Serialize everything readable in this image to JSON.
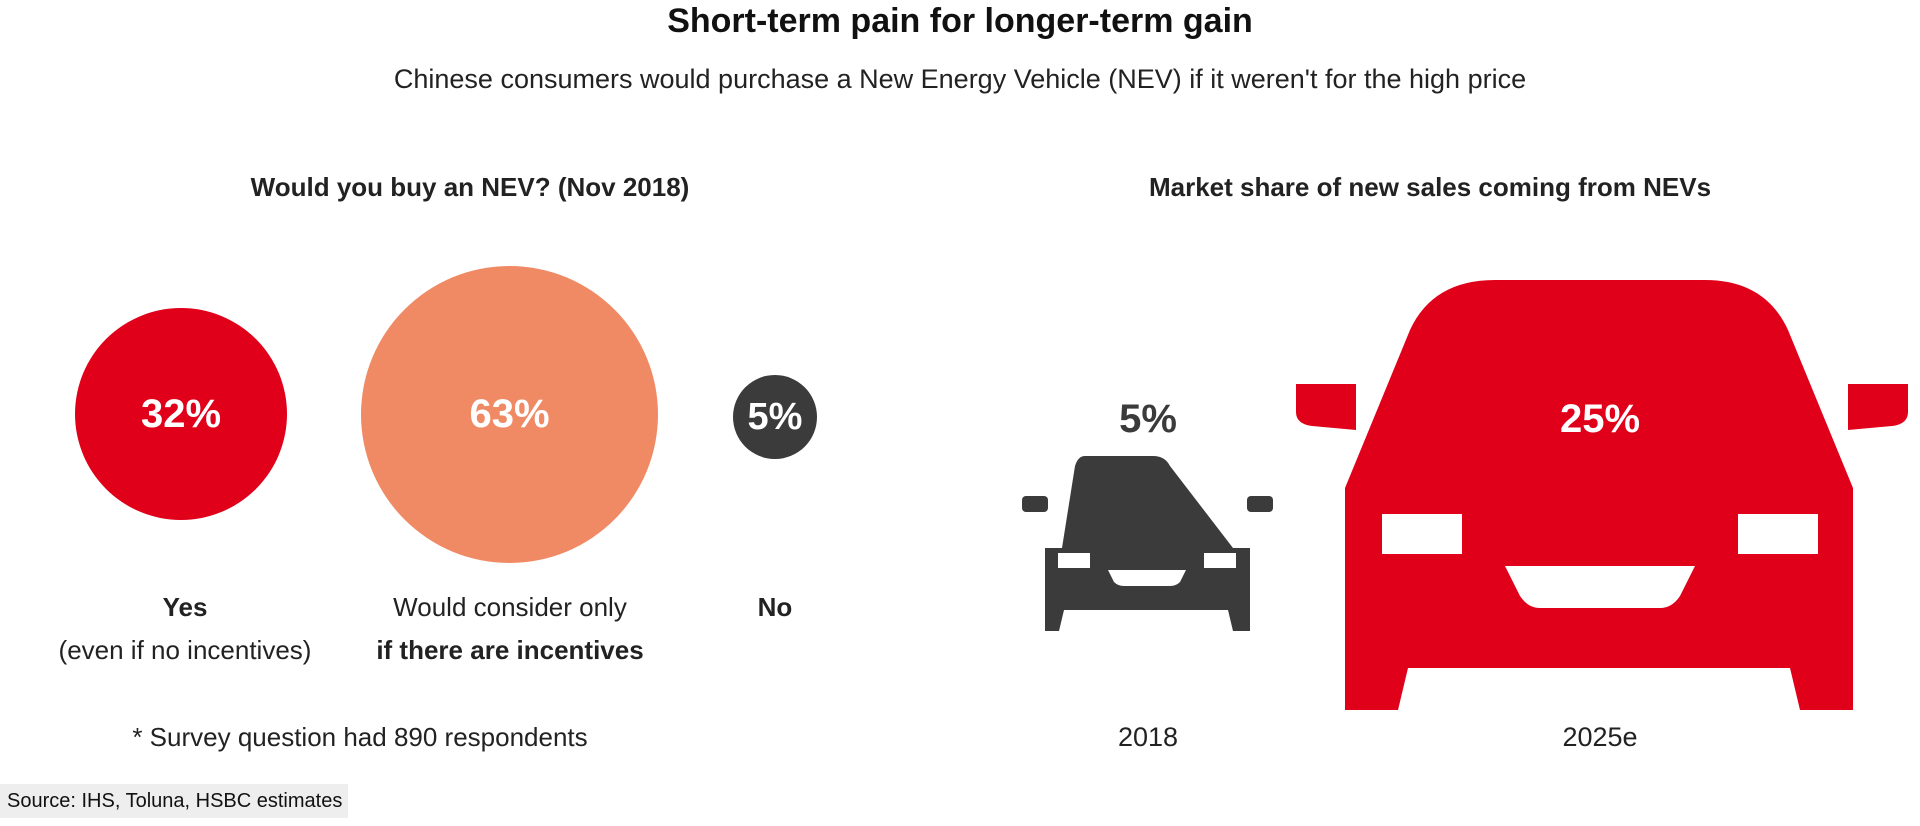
{
  "title": "Short-term pain for longer-term gain",
  "subtitle": "Chinese consumers would purchase a New Energy Vehicle (NEV) if it weren't for the high price",
  "left_panel": {
    "title": "Would you buy an NEV? (Nov 2018)",
    "note": "* Survey question had 890 respondents",
    "categories": [
      {
        "value_label": "32%",
        "line1": "Yes",
        "line2": "(even if no incentives)"
      },
      {
        "value_label": "63%",
        "line1": "Would consider only",
        "line2": "if there are incentives"
      },
      {
        "value_label": "5%",
        "line1": "No",
        "line2": ""
      }
    ]
  },
  "right_panel": {
    "title": "Market share of new sales coming from NEVs",
    "bars": [
      {
        "value_label": "5%",
        "year": "2018"
      },
      {
        "value_label": "25%",
        "year": "2025e"
      }
    ]
  },
  "source": "Source: IHS, Toluna, HSBC estimates",
  "colors": {
    "yes": "#e1001a",
    "consider": "#f08a64",
    "no": "#3b3b3b",
    "car_2018": "#3b3b3b",
    "car_2025": "#e1001a"
  },
  "chart_data": [
    {
      "type": "bubble",
      "title": "Would you buy an NEV? (Nov 2018)",
      "categories": [
        "Yes (even if no incentives)",
        "Would consider only if there are incentives",
        "No"
      ],
      "values": [
        32,
        63,
        5
      ],
      "unit": "%",
      "annotations": [
        "* Survey question had 890 respondents"
      ]
    },
    {
      "type": "bar",
      "title": "Market share of new sales coming from NEVs",
      "categories": [
        "2018",
        "2025e"
      ],
      "values": [
        5,
        25
      ],
      "unit": "%"
    }
  ]
}
